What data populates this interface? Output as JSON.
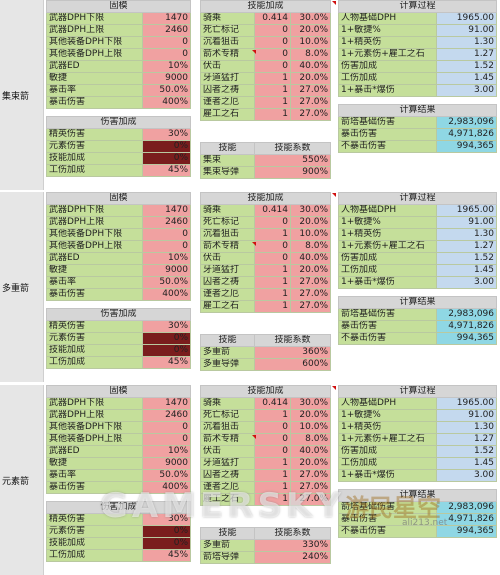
{
  "sections": [
    {
      "side": "集束箭",
      "gear": {
        "title": "固模",
        "rows": [
          {
            "label": "武器DPH下限",
            "val": "1470",
            "c": "g"
          },
          {
            "label": "武器DPH上限",
            "val": "2460",
            "c": "g"
          },
          {
            "label": "其他装备DPH下限",
            "val": "0",
            "c": "g"
          },
          {
            "label": "其他装备DPH上限",
            "val": "0",
            "c": "g"
          },
          {
            "label": "武器ED",
            "val": "10%",
            "c": "g"
          },
          {
            "label": "敏捷",
            "val": "9000",
            "c": "g"
          },
          {
            "label": "暴击率",
            "val": "50.0%",
            "c": "g"
          },
          {
            "label": "暴击伤害",
            "val": "400%",
            "c": "g"
          }
        ]
      },
      "bonus": {
        "title": "伤害加成",
        "rows": [
          {
            "label": "精英伤害",
            "val": "30%",
            "c": "p"
          },
          {
            "label": "元素伤害",
            "val": "0%",
            "c": "dr"
          },
          {
            "label": "技能加成",
            "val": "0%",
            "c": "dr"
          },
          {
            "label": "工伤加成",
            "val": "45%",
            "c": "p"
          }
        ]
      },
      "skills": {
        "title": "技能加成",
        "rows": [
          {
            "label": "骑乘",
            "a": "0.414",
            "b": "30.0%"
          },
          {
            "label": "死亡标记",
            "a": "0",
            "b": "20.0%"
          },
          {
            "label": "沉着狙击",
            "a": "0",
            "b": "10.0%"
          },
          {
            "label": "箭术专精",
            "a": "0",
            "b": "8.0%"
          },
          {
            "label": "伏击",
            "a": "0",
            "b": "40.0%"
          },
          {
            "label": "牙道猛打",
            "a": "1",
            "b": "20.0%"
          },
          {
            "label": "囚者之祷",
            "a": "1",
            "b": "27.0%"
          },
          {
            "label": "谨者之厄",
            "a": "1",
            "b": "27.0%"
          },
          {
            "label": "雇工之石",
            "a": "1",
            "b": "27.0%"
          }
        ]
      },
      "coef": {
        "h1": "技能",
        "h2": "技能系数",
        "rows": [
          {
            "label": "集束",
            "val": "550%"
          },
          {
            "label": "集束导弹",
            "val": "900%"
          }
        ]
      },
      "calc": {
        "title": "计算过程",
        "rows": [
          {
            "label": "人物基础DPH",
            "val": "1965.00"
          },
          {
            "label": "1+敏捷%",
            "val": "91.00"
          },
          {
            "label": "1+精英伤",
            "val": "1.30"
          },
          {
            "label": "1+元素伤+雇工之石",
            "val": "1.27"
          },
          {
            "label": "伤害加成",
            "val": "1.52"
          },
          {
            "label": "工伤加成",
            "val": "1.45"
          },
          {
            "label": "1+暴击*爆伤",
            "val": "3.00"
          }
        ]
      },
      "result": {
        "title": "计算结果",
        "rows": [
          {
            "label": "箭塔基础伤害",
            "val": "2,983,096"
          },
          {
            "label": "暴击伤害",
            "val": "4,971,826"
          },
          {
            "label": "不暴击伤害",
            "val": "994,365"
          }
        ]
      }
    },
    {
      "side": "多重箭",
      "gear": {
        "title": "固模",
        "rows": [
          {
            "label": "武器DPH下限",
            "val": "1470",
            "c": "g"
          },
          {
            "label": "武器DPH上限",
            "val": "2460",
            "c": "g"
          },
          {
            "label": "其他装备DPH下限",
            "val": "0",
            "c": "g"
          },
          {
            "label": "其他装备DPH上限",
            "val": "0",
            "c": "g"
          },
          {
            "label": "武器ED",
            "val": "10%",
            "c": "g"
          },
          {
            "label": "敏捷",
            "val": "9000",
            "c": "g"
          },
          {
            "label": "暴击率",
            "val": "50.0%",
            "c": "g"
          },
          {
            "label": "暴击伤害",
            "val": "400%",
            "c": "g"
          }
        ]
      },
      "bonus": {
        "title": "伤害加成",
        "rows": [
          {
            "label": "精英伤害",
            "val": "30%",
            "c": "p"
          },
          {
            "label": "元素伤害",
            "val": "0%",
            "c": "dr"
          },
          {
            "label": "技能加成",
            "val": "0%",
            "c": "dr"
          },
          {
            "label": "工伤加成",
            "val": "45%",
            "c": "p"
          }
        ]
      },
      "skills": {
        "title": "技能加成",
        "rows": [
          {
            "label": "骑乘",
            "a": "0.414",
            "b": "30.0%"
          },
          {
            "label": "死亡标记",
            "a": "0",
            "b": "20.0%"
          },
          {
            "label": "沉着狙击",
            "a": "1",
            "b": "10.0%"
          },
          {
            "label": "箭术专精",
            "a": "0",
            "b": "8.0%"
          },
          {
            "label": "伏击",
            "a": "0",
            "b": "40.0%"
          },
          {
            "label": "牙道猛打",
            "a": "1",
            "b": "20.0%"
          },
          {
            "label": "囚者之祷",
            "a": "1",
            "b": "27.0%"
          },
          {
            "label": "谨者之厄",
            "a": "1",
            "b": "27.0%"
          },
          {
            "label": "雇工之石",
            "a": "1",
            "b": "27.0%"
          }
        ]
      },
      "coef": {
        "h1": "技能",
        "h2": "技能系数",
        "rows": [
          {
            "label": "多重箭",
            "val": "360%"
          },
          {
            "label": "多重导弹",
            "val": "600%"
          }
        ]
      },
      "calc": {
        "title": "计算过程",
        "rows": [
          {
            "label": "人物基础DPH",
            "val": "1965.00"
          },
          {
            "label": "1+敏捷%",
            "val": "91.00"
          },
          {
            "label": "1+精英伤",
            "val": "1.30"
          },
          {
            "label": "1+元素伤+雇工之石",
            "val": "1.27"
          },
          {
            "label": "伤害加成",
            "val": "1.52"
          },
          {
            "label": "工伤加成",
            "val": "1.45"
          },
          {
            "label": "1+暴击*爆伤",
            "val": "3.00"
          }
        ]
      },
      "result": {
        "title": "计算结果",
        "rows": [
          {
            "label": "箭塔基础伤害",
            "val": "2,983,096"
          },
          {
            "label": "暴击伤害",
            "val": "4,971,826"
          },
          {
            "label": "不暴击伤害",
            "val": "994,365"
          }
        ]
      }
    },
    {
      "side": "元素箭",
      "gear": {
        "title": "固模",
        "rows": [
          {
            "label": "武器DPH下限",
            "val": "1470",
            "c": "g"
          },
          {
            "label": "武器DPH上限",
            "val": "2460",
            "c": "g"
          },
          {
            "label": "其他装备DPH下限",
            "val": "0",
            "c": "g"
          },
          {
            "label": "其他装备DPH上限",
            "val": "0",
            "c": "g"
          },
          {
            "label": "武器ED",
            "val": "10%",
            "c": "g"
          },
          {
            "label": "敏捷",
            "val": "9000",
            "c": "g"
          },
          {
            "label": "暴击率",
            "val": "50.0%",
            "c": "g"
          },
          {
            "label": "暴击伤害",
            "val": "400%",
            "c": "g"
          }
        ]
      },
      "bonus": {
        "title": "伤害加成",
        "rows": [
          {
            "label": "精英伤害",
            "val": "30%",
            "c": "p"
          },
          {
            "label": "元素伤害",
            "val": "0%",
            "c": "dr"
          },
          {
            "label": "技能加成",
            "val": "0%",
            "c": "dr"
          },
          {
            "label": "工伤加成",
            "val": "45%",
            "c": "p"
          }
        ]
      },
      "skills": {
        "title": "技能加成",
        "rows": [
          {
            "label": "骑乘",
            "a": "0.414",
            "b": "30.0%"
          },
          {
            "label": "死亡标记",
            "a": "1",
            "b": "20.0%"
          },
          {
            "label": "沉着狙击",
            "a": "0",
            "b": "10.0%"
          },
          {
            "label": "箭术专精",
            "a": "0",
            "b": "8.0%"
          },
          {
            "label": "伏击",
            "a": "0",
            "b": "40.0%"
          },
          {
            "label": "牙道猛打",
            "a": "1",
            "b": "20.0%"
          },
          {
            "label": "囚者之祷",
            "a": "1",
            "b": "27.0%"
          },
          {
            "label": "谨者之厄",
            "a": "1",
            "b": "27.0%"
          },
          {
            "label": "雇工之石",
            "a": "1",
            "b": "27.0%"
          }
        ]
      },
      "coef": {
        "h1": "技能",
        "h2": "技能系数",
        "rows": [
          {
            "label": "多重箭",
            "val": "330%"
          },
          {
            "label": "箭塔导弹",
            "val": "240%"
          }
        ]
      },
      "calc": {
        "title": "计算过程",
        "rows": [
          {
            "label": "人物基础DPH",
            "val": "1965.00"
          },
          {
            "label": "1+敏捷%",
            "val": "91.00"
          },
          {
            "label": "1+精英伤",
            "val": "1.30"
          },
          {
            "label": "1+元素伤+雇工之石",
            "val": "1.27"
          },
          {
            "label": "伤害加成",
            "val": "1.52"
          },
          {
            "label": "工伤加成",
            "val": "1.45"
          },
          {
            "label": "1+暴击*爆伤",
            "val": "3.00"
          }
        ]
      },
      "result": {
        "title": "计算结果",
        "rows": [
          {
            "label": "箭塔基础伤害",
            "val": "2,983,096"
          },
          {
            "label": "暴击伤害",
            "val": "4,971,826"
          },
          {
            "label": "不暴击伤害",
            "val": "994,365"
          }
        ]
      }
    }
  ],
  "watermark": {
    "text": "GAMERSKY",
    "logo": "游民星空",
    "site": "ali213.net"
  },
  "colors": {
    "green": "#c5df9a",
    "pink": "#f0a1a1",
    "blue": "#c4d9ee",
    "cyan": "#8fd7e4",
    "darkred": "#7a1d1d"
  }
}
